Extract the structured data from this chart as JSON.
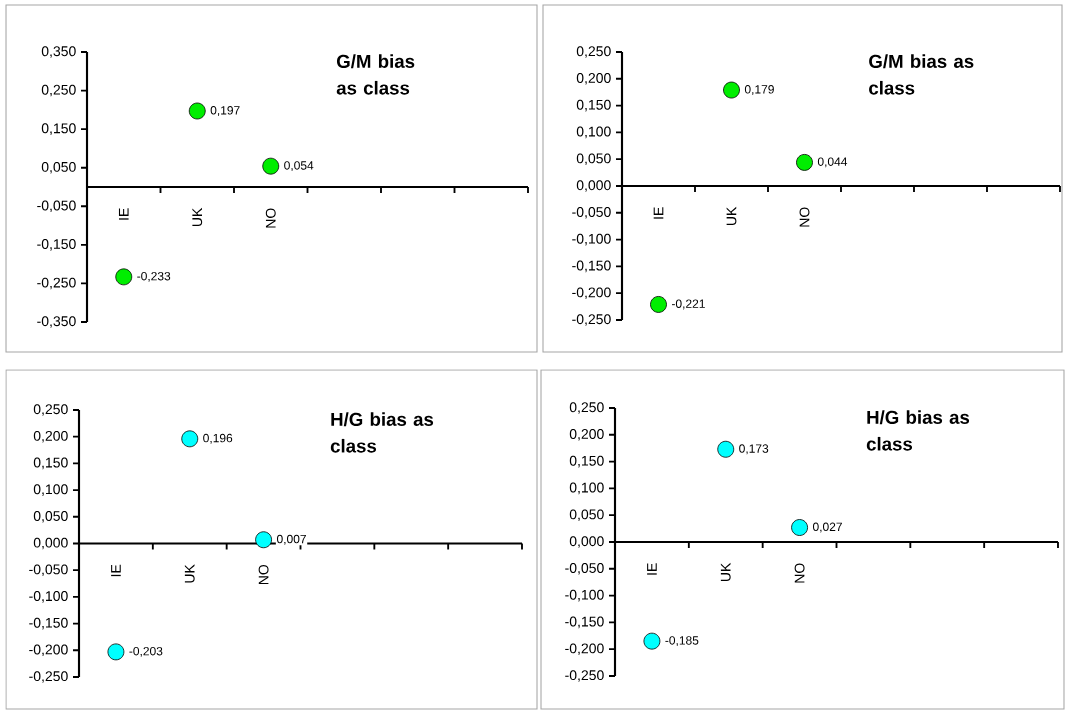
{
  "chart_data": [
    {
      "type": "scatter",
      "title": "G/M bias as class",
      "categories": [
        "IE",
        "UK",
        "NO",
        null,
        null,
        null
      ],
      "values": [
        -0.233,
        0.197,
        0.054,
        null,
        null,
        null
      ],
      "value_labels": [
        "-0,233",
        "0,197",
        "0,054",
        null,
        null,
        null
      ],
      "color": "#00ee00",
      "ylim": [
        -0.35,
        0.35
      ],
      "yticks": [
        {
          "value": -0.35,
          "label": "-0,350"
        },
        {
          "value": -0.25,
          "label": "-0,250"
        },
        {
          "value": -0.15,
          "label": "-0,150"
        },
        {
          "value": -0.05,
          "label": "-0,050"
        },
        {
          "value": 0.05,
          "label": "0,050"
        },
        {
          "value": 0.15,
          "label": "0,150"
        },
        {
          "value": 0.25,
          "label": "0,250"
        },
        {
          "value": 0.35,
          "label": "0,350"
        }
      ]
    },
    {
      "type": "scatter",
      "title": "G/M bias as class",
      "categories": [
        "IE",
        "UK",
        "NO",
        null,
        null,
        null
      ],
      "values": [
        -0.221,
        0.179,
        0.044,
        null,
        null,
        null
      ],
      "value_labels": [
        "-0,221",
        "0,179",
        "0,044",
        null,
        null,
        null
      ],
      "color": "#00ee00",
      "ylim": [
        -0.25,
        0.25
      ],
      "yticks": [
        {
          "value": -0.25,
          "label": "-0,250"
        },
        {
          "value": -0.2,
          "label": "-0,200"
        },
        {
          "value": -0.15,
          "label": "-0,150"
        },
        {
          "value": -0.1,
          "label": "-0,100"
        },
        {
          "value": -0.05,
          "label": "-0,050"
        },
        {
          "value": 0,
          "label": "0,000"
        },
        {
          "value": 0.05,
          "label": "0,050"
        },
        {
          "value": 0.1,
          "label": "0,100"
        },
        {
          "value": 0.15,
          "label": "0,150"
        },
        {
          "value": 0.2,
          "label": "0,200"
        },
        {
          "value": 0.25,
          "label": "0,250"
        }
      ]
    },
    {
      "type": "scatter",
      "title": "H/G bias as class",
      "categories": [
        "IE",
        "UK",
        "NO",
        null,
        null,
        null
      ],
      "values": [
        -0.203,
        0.196,
        0.007,
        null,
        null,
        null
      ],
      "value_labels": [
        "-0,203",
        "0,196",
        "0,007",
        null,
        null,
        null
      ],
      "color": "#00ffff",
      "ylim": [
        -0.25,
        0.25
      ],
      "yticks": [
        {
          "value": -0.25,
          "label": "-0,250"
        },
        {
          "value": -0.2,
          "label": "-0,200"
        },
        {
          "value": -0.15,
          "label": "-0,150"
        },
        {
          "value": -0.1,
          "label": "-0,100"
        },
        {
          "value": -0.05,
          "label": "-0,050"
        },
        {
          "value": 0,
          "label": "0,000"
        },
        {
          "value": 0.05,
          "label": "0,050"
        },
        {
          "value": 0.1,
          "label": "0,100"
        },
        {
          "value": 0.15,
          "label": "0,150"
        },
        {
          "value": 0.2,
          "label": "0,200"
        },
        {
          "value": 0.25,
          "label": "0,250"
        }
      ]
    },
    {
      "type": "scatter",
      "title": "H/G bias as class",
      "categories": [
        "IE",
        "UK",
        "NO",
        null,
        null,
        null
      ],
      "values": [
        -0.185,
        0.173,
        0.027,
        null,
        null,
        null
      ],
      "value_labels": [
        "-0,185",
        "0,173",
        "0,027",
        null,
        null,
        null
      ],
      "color": "#00ffff",
      "ylim": [
        -0.25,
        0.25
      ],
      "yticks": [
        {
          "value": -0.25,
          "label": "-0,250"
        },
        {
          "value": -0.2,
          "label": "-0,200"
        },
        {
          "value": -0.15,
          "label": "-0,150"
        },
        {
          "value": -0.1,
          "label": "-0,100"
        },
        {
          "value": -0.05,
          "label": "-0,050"
        },
        {
          "value": 0,
          "label": "0,000"
        },
        {
          "value": 0.05,
          "label": "0,050"
        },
        {
          "value": 0.1,
          "label": "0,100"
        },
        {
          "value": 0.15,
          "label": "0,150"
        },
        {
          "value": 0.2,
          "label": "0,200"
        },
        {
          "value": 0.25,
          "label": "0,250"
        }
      ]
    }
  ]
}
